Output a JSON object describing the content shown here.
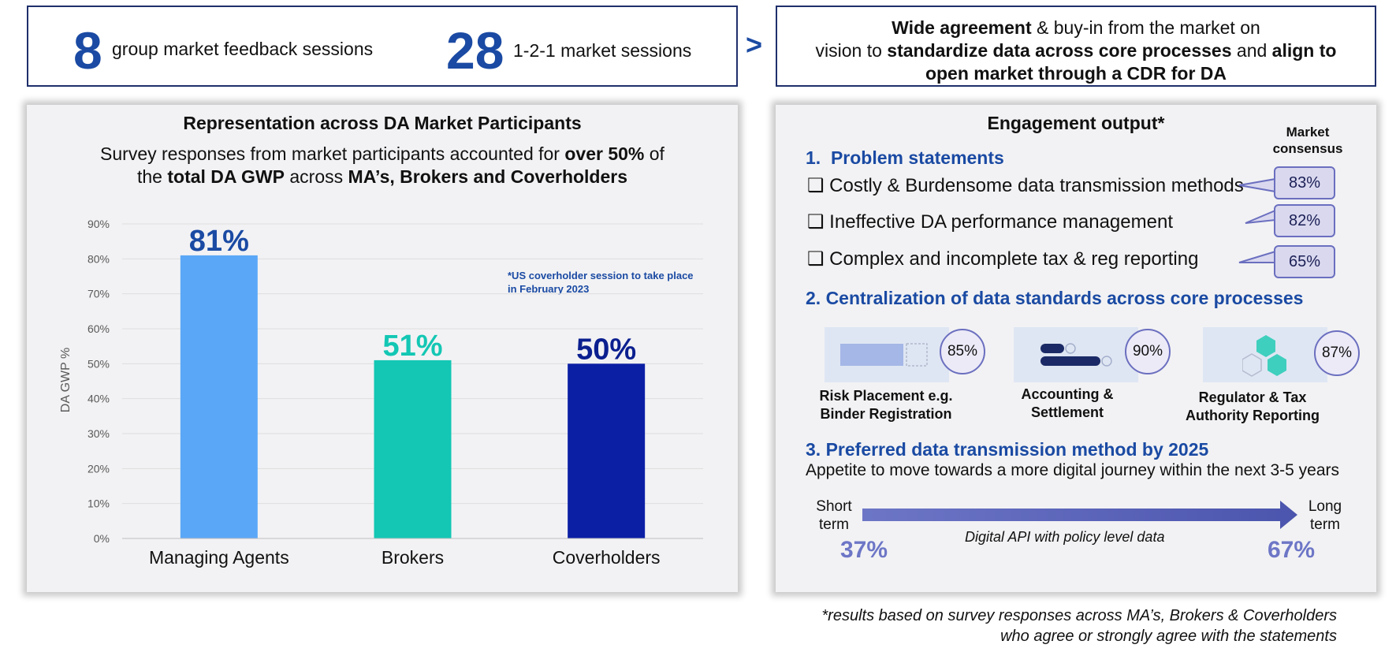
{
  "top": {
    "stat1": {
      "number": "8",
      "label": "group market feedback sessions"
    },
    "stat2": {
      "number": "28",
      "label": "1-2-1 market sessions"
    },
    "arrow": ">",
    "agreement": {
      "l1a": "Wide agreement",
      "l1b": " & buy-in from the market on",
      "l2a": "vision to ",
      "l2b": "standardize data across core processes",
      "l2c": " and ",
      "l2d": "align to",
      "l3": "open market through a CDR for DA"
    }
  },
  "left_panel": {
    "title": "Representation across DA Market Participants",
    "sub1a": "Survey responses from market participants accounted for ",
    "sub1b": "over 50%",
    "sub1c": " of",
    "sub2a": "the ",
    "sub2b": "total DA GWP",
    "sub2c": " across ",
    "sub2d": "MA’s, Brokers and Coverholders",
    "note1": "*US coverholder session to take place",
    "note2": "in February 2023"
  },
  "chart_data": {
    "type": "bar",
    "categories": [
      "Managing Agents",
      "Brokers",
      "Coverholders"
    ],
    "values": [
      81,
      51,
      50
    ],
    "data_labels": [
      "81%",
      "51%",
      "50%"
    ],
    "bar_colors": [
      "#5aa7f7",
      "#13c7b4",
      "#0b1fa5"
    ],
    "label_colors": [
      "#1a4aa3",
      "#13c7b4",
      "#0b1f8f"
    ],
    "ylabel": "DA GWP %",
    "ylim": [
      0,
      90
    ],
    "yticks": [
      "0%",
      "10%",
      "20%",
      "30%",
      "40%",
      "50%",
      "60%",
      "70%",
      "80%",
      "90%"
    ],
    "grid": true
  },
  "right_panel": {
    "title": "Engagement output*",
    "consensus1": "Market",
    "consensus2": "consensus",
    "s1_title": "1.  Problem statements",
    "problems": [
      {
        "text": "❑ Costly & Burdensome data transmission methods",
        "pct": "83%"
      },
      {
        "text": "❑ Ineffective DA performance management",
        "pct": "82%"
      },
      {
        "text": "❑ Complex and incomplete tax & reg reporting",
        "pct": "65%"
      }
    ],
    "s2_title": "2. Centralization of data standards across core processes",
    "cards": [
      {
        "pct": "85%",
        "cap1": "Risk Placement e.g.",
        "cap2": "Binder Registration"
      },
      {
        "pct": "90%",
        "cap1": "Accounting &",
        "cap2": "Settlement"
      },
      {
        "pct": "87%",
        "cap1": "Regulator & Tax",
        "cap2": "Authority Reporting"
      }
    ],
    "s3_title": "3. Preferred data transmission method by 2025",
    "s3_sub": "Appetite to move towards a more digital journey within the next 3-5 years",
    "short1": "Short",
    "short2": "term",
    "long1": "Long",
    "long2": "term",
    "arrow_label": "Digital API with policy level data",
    "pct_short": "37%",
    "pct_long": "67%"
  },
  "footnote": {
    "l1": "*results based on survey responses across MA’s, Brokers & Coverholders",
    "l2": "who agree or strongly agree with the statements"
  },
  "colors": {
    "navy": "#1f2f6b",
    "accent_blue": "#1a4aa3",
    "arrow": "#5d66b8",
    "pct_purple": "#5d66b8"
  }
}
